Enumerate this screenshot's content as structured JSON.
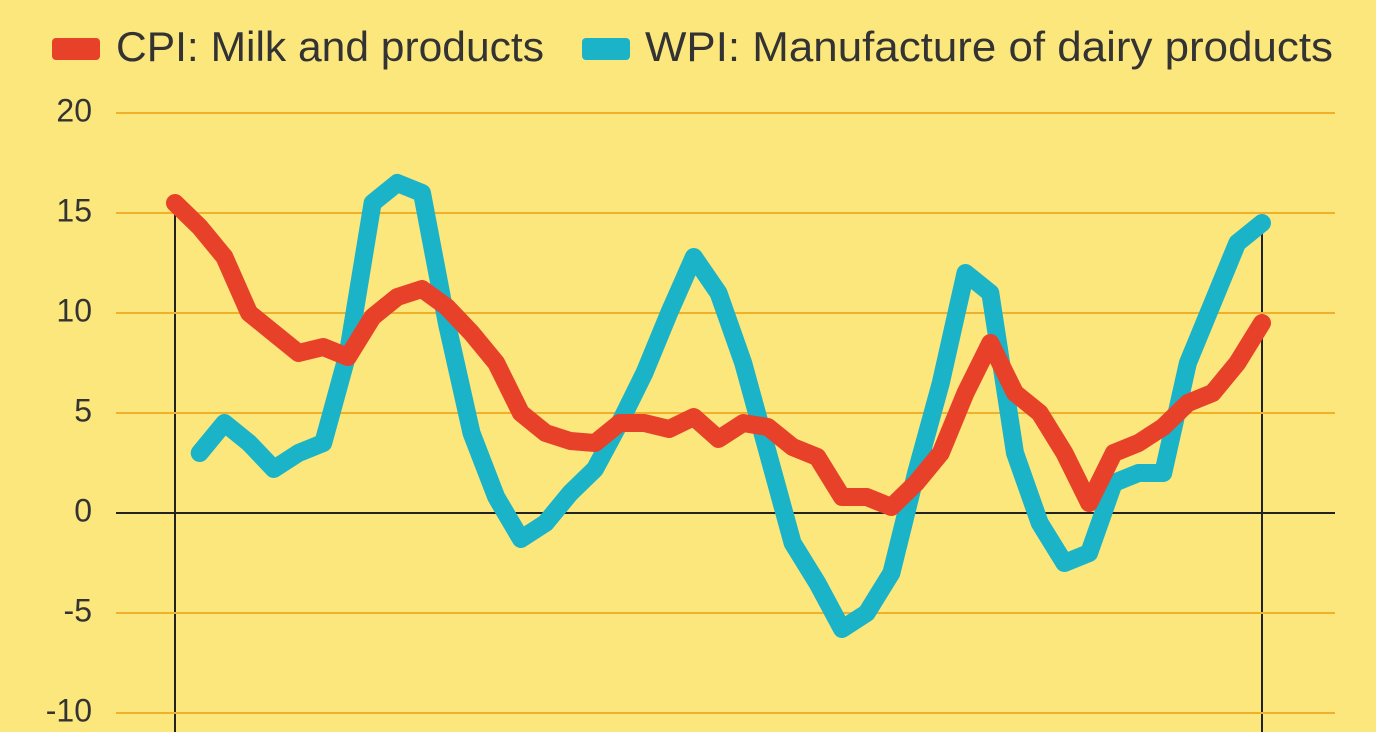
{
  "chart_data": {
    "type": "line",
    "categories": [
      null,
      null,
      null,
      null,
      null,
      null,
      null,
      null,
      null,
      null,
      null,
      null,
      null,
      null,
      null,
      null,
      null,
      null,
      null,
      null,
      null,
      null,
      null,
      null,
      null,
      null,
      null,
      null,
      null,
      null,
      null,
      null,
      null,
      null,
      null,
      null,
      null,
      null,
      null,
      null,
      null,
      null,
      null,
      null,
      null
    ],
    "series": [
      {
        "name": "CPI: Milk and products",
        "color": "#e8412a",
        "values": [
          15.5,
          14.3,
          12.8,
          10,
          9,
          8,
          8.3,
          7.8,
          9.8,
          10.8,
          11.2,
          10.3,
          9,
          7.5,
          5,
          4,
          3.6,
          3.5,
          4.5,
          4.5,
          4.2,
          4.8,
          3.7,
          4.5,
          4.3,
          3.3,
          2.8,
          0.8,
          0.8,
          0.3,
          1.5,
          3,
          6,
          8.5,
          6,
          5,
          3,
          0.5,
          3,
          3.5,
          4.3,
          5.5,
          6,
          7.5,
          9.5
        ]
      },
      {
        "name": "WPI: Manufacture of dairy products",
        "color": "#1bb3c8",
        "values": [
          null,
          3,
          4.5,
          3.5,
          2.2,
          3,
          3.5,
          8,
          15.5,
          16.5,
          16,
          9.5,
          4,
          0.8,
          -1.3,
          -0.5,
          1,
          2.2,
          4.5,
          7,
          10,
          12.8,
          11,
          7.5,
          3,
          -1.5,
          -3.5,
          -5.8,
          -5,
          -3,
          2,
          6.5,
          12,
          11,
          3,
          -0.5,
          -2.5,
          -2,
          1.5,
          2,
          2,
          7.5,
          10.5,
          13.5,
          14.5
        ]
      }
    ],
    "ylim": [
      -10,
      20
    ],
    "yticks": [
      20,
      15,
      10,
      5,
      0,
      -5,
      -10
    ],
    "grid": true
  }
}
